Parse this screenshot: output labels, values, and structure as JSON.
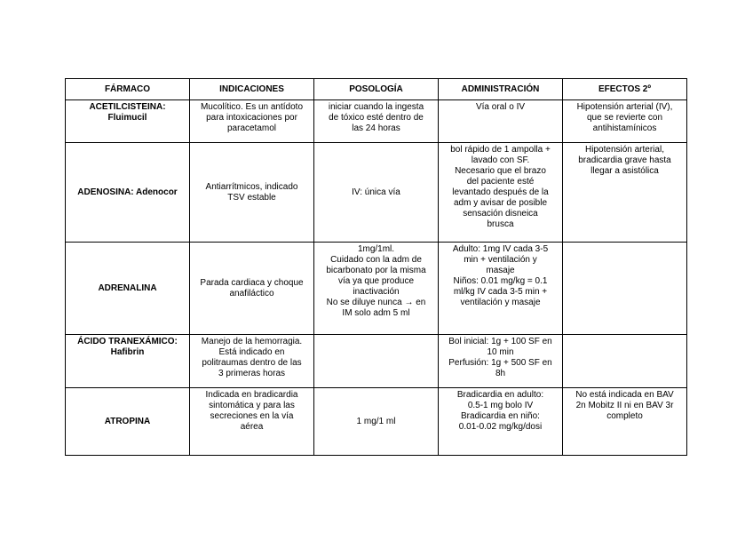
{
  "headers": [
    "FÁRMACO",
    "INDICACIONES",
    "POSOLOGÍA",
    "ADMINISTRACIÓN",
    "EFECTOS 2º"
  ],
  "rows": [
    {
      "farmaco": "ACETILCISTEINA:\nFluimucil",
      "indicaciones": "Mucolítico. Es un antídoto\npara intoxicaciones por\nparacetamol",
      "posologia": "iniciar cuando la ingesta\nde tóxico esté dentro de\nlas 24 horas",
      "administracion": "Vía oral o IV",
      "efectos": "Hipotensión arterial (IV),\nque se revierte con\nantihistamínicos"
    },
    {
      "farmaco": "ADENOSINA: Adenocor",
      "indicaciones": "Antiarrítmicos, indicado\nTSV estable",
      "posologia": "IV: única vía",
      "administracion": "bol rápido de 1 ampolla +\nlavado con SF.\nNecesario que el brazo\ndel paciente esté\nlevantado después de la\nadm y avisar de posible\nsensación disneica\nbrusca",
      "efectos": "Hipotensión arterial,\nbradicardia grave hasta\nllegar a asistólica"
    },
    {
      "farmaco": "ADRENALINA",
      "indicaciones": "Parada cardiaca y choque\nanafiláctico",
      "posologia": "1mg/1ml.\nCuidado con la adm de\nbicarbonato por la misma\nvía ya que produce\ninactivación\nNo se diluye nunca → en\nIM solo adm 5 ml",
      "administracion": "Adulto: 1mg IV cada 3-5\nmin + ventilación y\nmasaje\nNiños: 0.01 mg/kg = 0.1\nml/kg IV cada 3-5 min +\nventilación y masaje",
      "efectos": ""
    },
    {
      "farmaco": "ÁCIDO TRANEXÁMICO:\nHafibrin",
      "indicaciones": "Manejo de la hemorragia.\nEstá indicado en\npolitraumas dentro de las\n3 primeras horas",
      "posologia": "",
      "administracion": "Bol inicial: 1g + 100 SF en\n10 min\nPerfusión: 1g + 500 SF en\n8h",
      "efectos": ""
    },
    {
      "farmaco": "ATROPINA",
      "indicaciones": "Indicada en bradicardia\nsintomática y para las\nsecreciones en la vía\naérea",
      "posologia": "1 mg/1 ml",
      "administracion": "Bradicardia en adulto:\n0.5-1 mg bolo IV\nBradicardia en niño:\n0.01-0.02 mg/kg/dosi",
      "efectos": "No está indicada en BAV\n2n Mobitz II ni en BAV 3r\ncompleto"
    }
  ]
}
